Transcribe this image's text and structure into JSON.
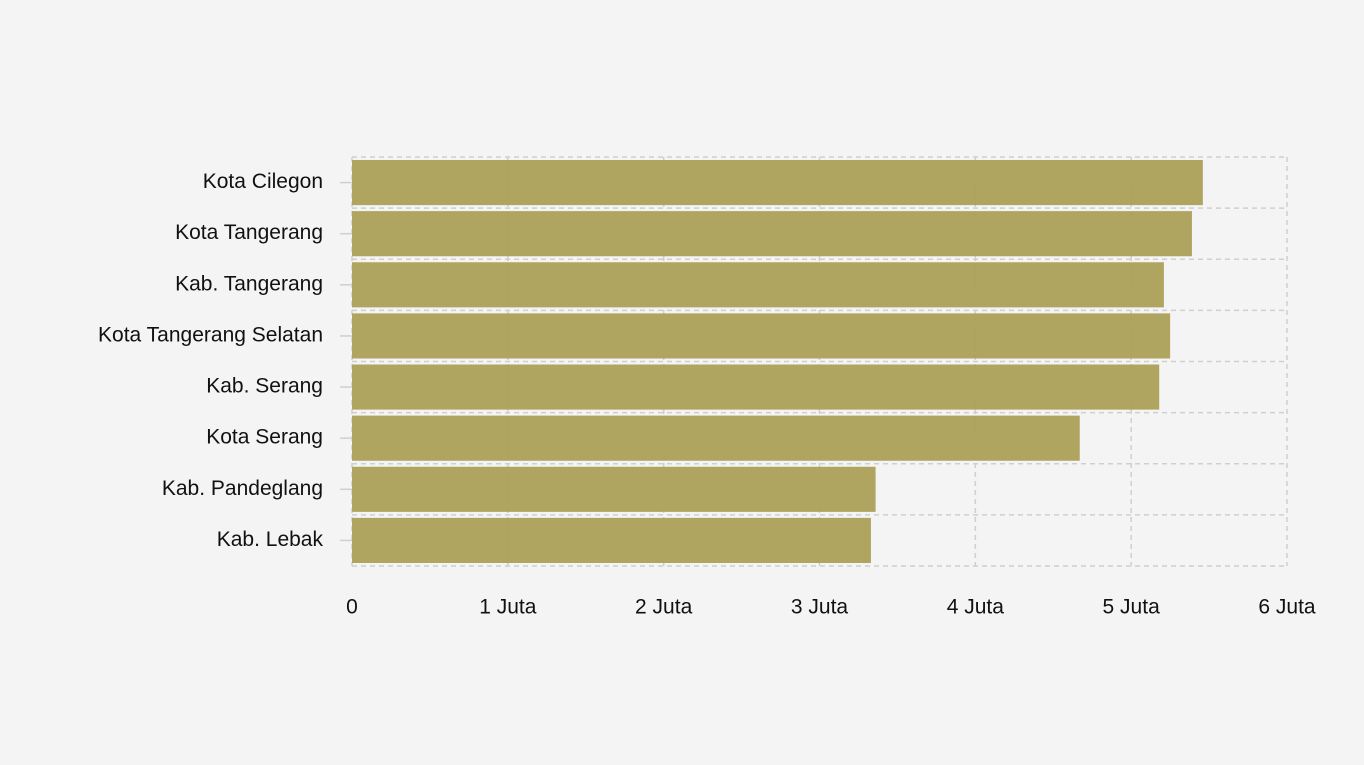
{
  "chart_data": {
    "type": "bar",
    "orientation": "horizontal",
    "categories": [
      "Kota Cilegon",
      "Kota Tangerang",
      "Kab. Tangerang",
      "Kota Tangerang Selatan",
      "Kab. Serang",
      "Kota Serang",
      "Kab. Pandeglang",
      "Kab. Lebak"
    ],
    "values": [
      5460000,
      5390000,
      5210000,
      5250000,
      5180000,
      4670000,
      3360000,
      3330000
    ],
    "color": "#ac9f58",
    "xlim": [
      0,
      6000000
    ],
    "xticks": [
      0,
      {
        "value": 1000000,
        "label": "1 Juta"
      },
      {
        "value": 2000000,
        "label": "2 Juta"
      },
      {
        "value": 3000000,
        "label": "3 Juta"
      },
      {
        "value": 4000000,
        "label": "4 Juta"
      },
      {
        "value": 5000000,
        "label": "5 Juta"
      },
      {
        "value": 6000000,
        "label": "6 Juta"
      }
    ],
    "grid": true
  }
}
